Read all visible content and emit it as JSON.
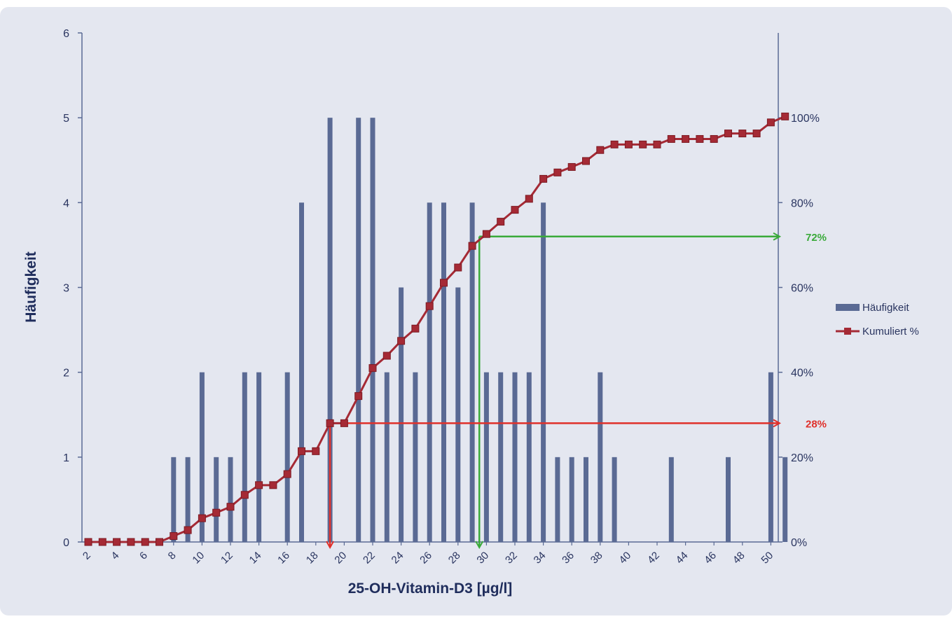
{
  "chart_data": {
    "type": "bar+line",
    "ylabel": "Häufigkeit",
    "xlabel": "25-OH-Vitamin-D3 [µg/l]",
    "left_axis": {
      "ylim": [
        0,
        6
      ],
      "ticks": [
        "0",
        "1",
        "2",
        "3",
        "4",
        "5",
        "6"
      ]
    },
    "right_axis": {
      "ylim": [
        0,
        120
      ],
      "ticks": [
        "0%",
        "20%",
        "40%",
        "60%",
        "80%",
        "100%"
      ]
    },
    "x": [
      2,
      3,
      4,
      5,
      6,
      7,
      8,
      9,
      10,
      11,
      12,
      13,
      14,
      15,
      16,
      17,
      18,
      19,
      20,
      21,
      22,
      23,
      24,
      25,
      26,
      27,
      28,
      29,
      30,
      31,
      32,
      33,
      34,
      35,
      36,
      37,
      38,
      39,
      40,
      41,
      42,
      43,
      44,
      45,
      46,
      47,
      48,
      49,
      50,
      51
    ],
    "x_tick_labels": [
      "2",
      "4",
      "6",
      "8",
      "10",
      "12",
      "14",
      "16",
      "18",
      "20",
      "22",
      "24",
      "26",
      "28",
      "30",
      "32",
      "34",
      "36",
      "38",
      "40",
      "42",
      "44",
      "46",
      "48",
      "50"
    ],
    "series": [
      {
        "name": "Häufigkeit",
        "kind": "bar",
        "color": "#5a6a94",
        "values": [
          0,
          0,
          0,
          0,
          0,
          0,
          1,
          1,
          2,
          1,
          1,
          2,
          2,
          0,
          2,
          4,
          0,
          5,
          0,
          5,
          5,
          2,
          3,
          2,
          4,
          4,
          3,
          4,
          2,
          2,
          2,
          2,
          4,
          1,
          1,
          1,
          2,
          1,
          0,
          0,
          0,
          1,
          0,
          0,
          0,
          1,
          0,
          0,
          2,
          1
        ]
      },
      {
        "name": "Kumuliert %",
        "kind": "line",
        "color": "#a52a35",
        "values": [
          0,
          0,
          0,
          0,
          0,
          0,
          1.4,
          2.8,
          5.6,
          6.9,
          8.3,
          11.1,
          13.4,
          13.4,
          16,
          21.4,
          21.4,
          28,
          28,
          34.4,
          41,
          43.9,
          47.4,
          50.3,
          55.6,
          61.1,
          64.7,
          69.8,
          72.6,
          75.5,
          78.3,
          80.9,
          85.6,
          87.1,
          88.4,
          89.8,
          92.4,
          93.7,
          93.7,
          93.7,
          93.7,
          95,
          95,
          95,
          95,
          96.3,
          96.3,
          96.3,
          98.9,
          100.3
        ]
      }
    ],
    "legend": {
      "position": "right",
      "entries": [
        "Häufigkeit",
        "Kumuliert %"
      ]
    },
    "annotations": [
      {
        "label": "72%",
        "color": "#3aaa3a",
        "x": 29.5,
        "percent": 72
      },
      {
        "label": "28%",
        "color": "#e0302a",
        "x": 19,
        "percent": 28
      }
    ],
    "grid": false
  }
}
